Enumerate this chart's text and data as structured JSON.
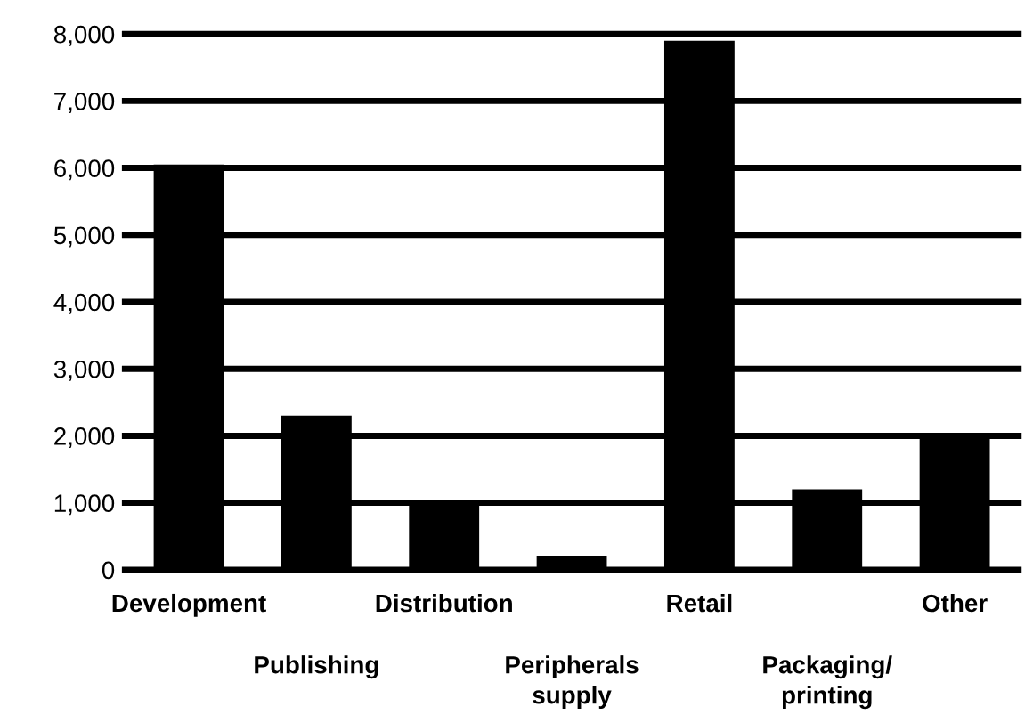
{
  "chart_data": {
    "type": "bar",
    "categories": [
      "Development",
      "Publishing",
      "Distribution",
      "Peripherals\nsupply",
      "Retail",
      "Packaging/\nprinting",
      "Other"
    ],
    "values": [
      6050,
      2300,
      1000,
      200,
      7900,
      1200,
      2000
    ],
    "color": "#000000",
    "ylim": [
      0,
      8000
    ],
    "yticks": [
      {
        "value": 0,
        "label": "0"
      },
      {
        "value": 1000,
        "label": "1,000"
      },
      {
        "value": 2000,
        "label": "2,000"
      },
      {
        "value": 3000,
        "label": "3,000"
      },
      {
        "value": 4000,
        "label": "4,000"
      },
      {
        "value": 5000,
        "label": "5,000"
      },
      {
        "value": 6000,
        "label": "6,000"
      },
      {
        "value": 7000,
        "label": "7,000"
      },
      {
        "value": 8000,
        "label": "8,000"
      }
    ],
    "grid": "y"
  }
}
